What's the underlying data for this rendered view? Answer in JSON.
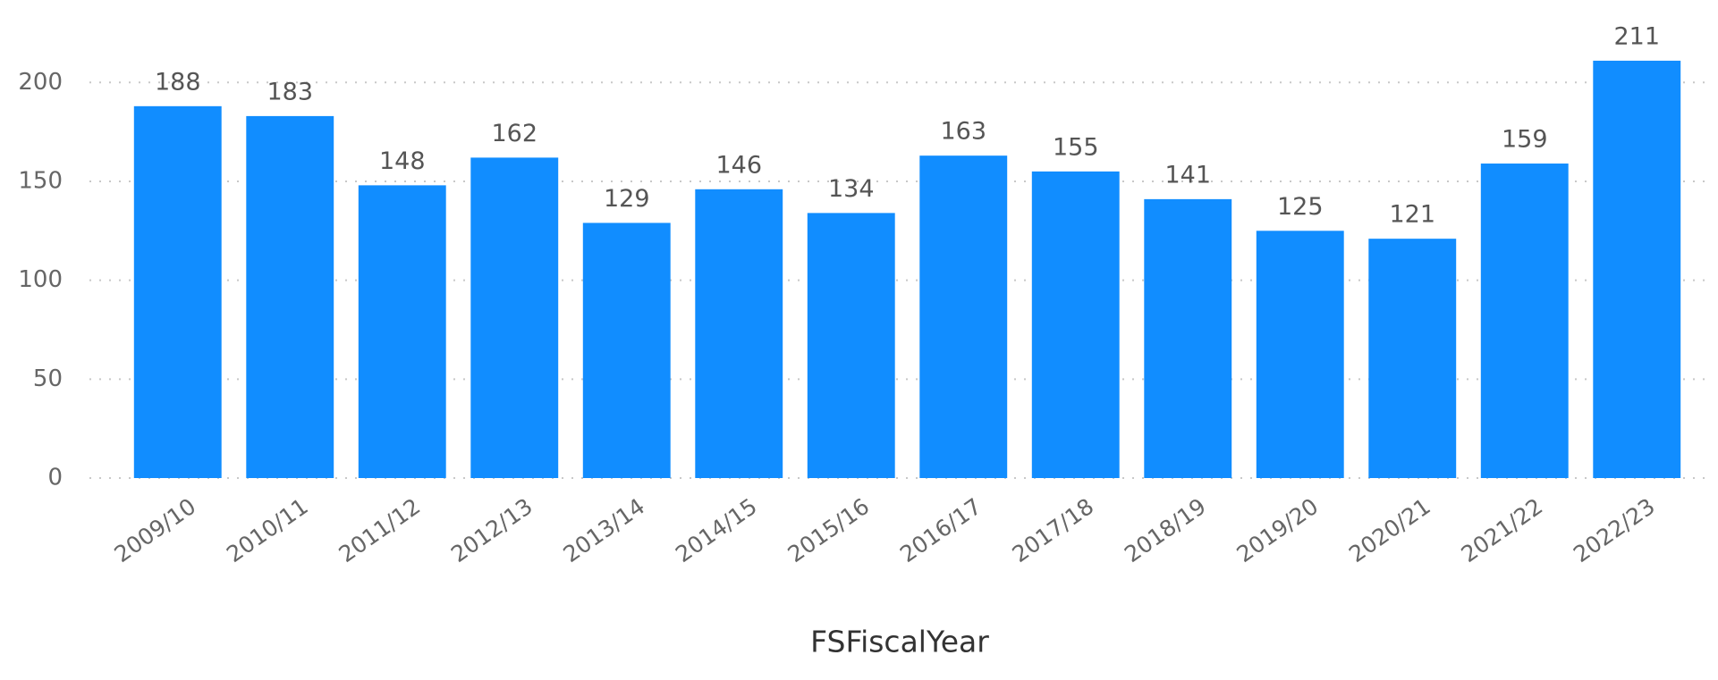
{
  "chart_data": {
    "type": "bar",
    "x_label": "FSFiscalYear",
    "categories": [
      "2009/10",
      "2010/11",
      "2011/12",
      "2012/13",
      "2013/14",
      "2014/15",
      "2015/16",
      "2016/17",
      "2017/18",
      "2018/19",
      "2019/20",
      "2020/21",
      "2021/22",
      "2022/23"
    ],
    "values": [
      188,
      183,
      148,
      162,
      129,
      146,
      134,
      163,
      155,
      141,
      125,
      121,
      159,
      211
    ],
    "color": "#118dff",
    "ylim": [
      0,
      220
    ],
    "yticks": [
      0,
      50,
      100,
      150,
      200
    ],
    "grid": true
  }
}
